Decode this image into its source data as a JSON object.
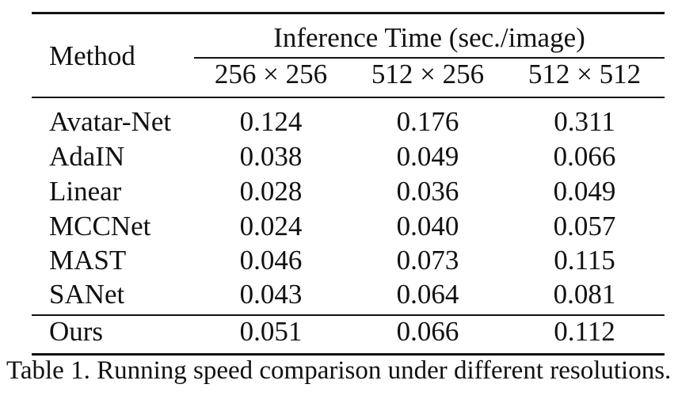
{
  "table": {
    "header": {
      "method_label": "Method",
      "group_label": "Inference Time (sec./image)",
      "resolutions": [
        "256 × 256",
        "512 × 256",
        "512 × 512"
      ]
    },
    "rows": [
      {
        "method": "Avatar-Net",
        "values": [
          "0.124",
          "0.176",
          "0.311"
        ]
      },
      {
        "method": "AdaIN",
        "values": [
          "0.038",
          "0.049",
          "0.066"
        ]
      },
      {
        "method": "Linear",
        "values": [
          "0.028",
          "0.036",
          "0.049"
        ]
      },
      {
        "method": "MCCNet",
        "values": [
          "0.024",
          "0.040",
          "0.057"
        ]
      },
      {
        "method": "MAST",
        "values": [
          "0.046",
          "0.073",
          "0.115"
        ]
      },
      {
        "method": "SANet",
        "values": [
          "0.043",
          "0.064",
          "0.081"
        ]
      }
    ],
    "ours": {
      "method": "Ours",
      "values": [
        "0.051",
        "0.066",
        "0.112"
      ]
    }
  },
  "caption": "Table 1. Running speed comparison under different resolutions."
}
